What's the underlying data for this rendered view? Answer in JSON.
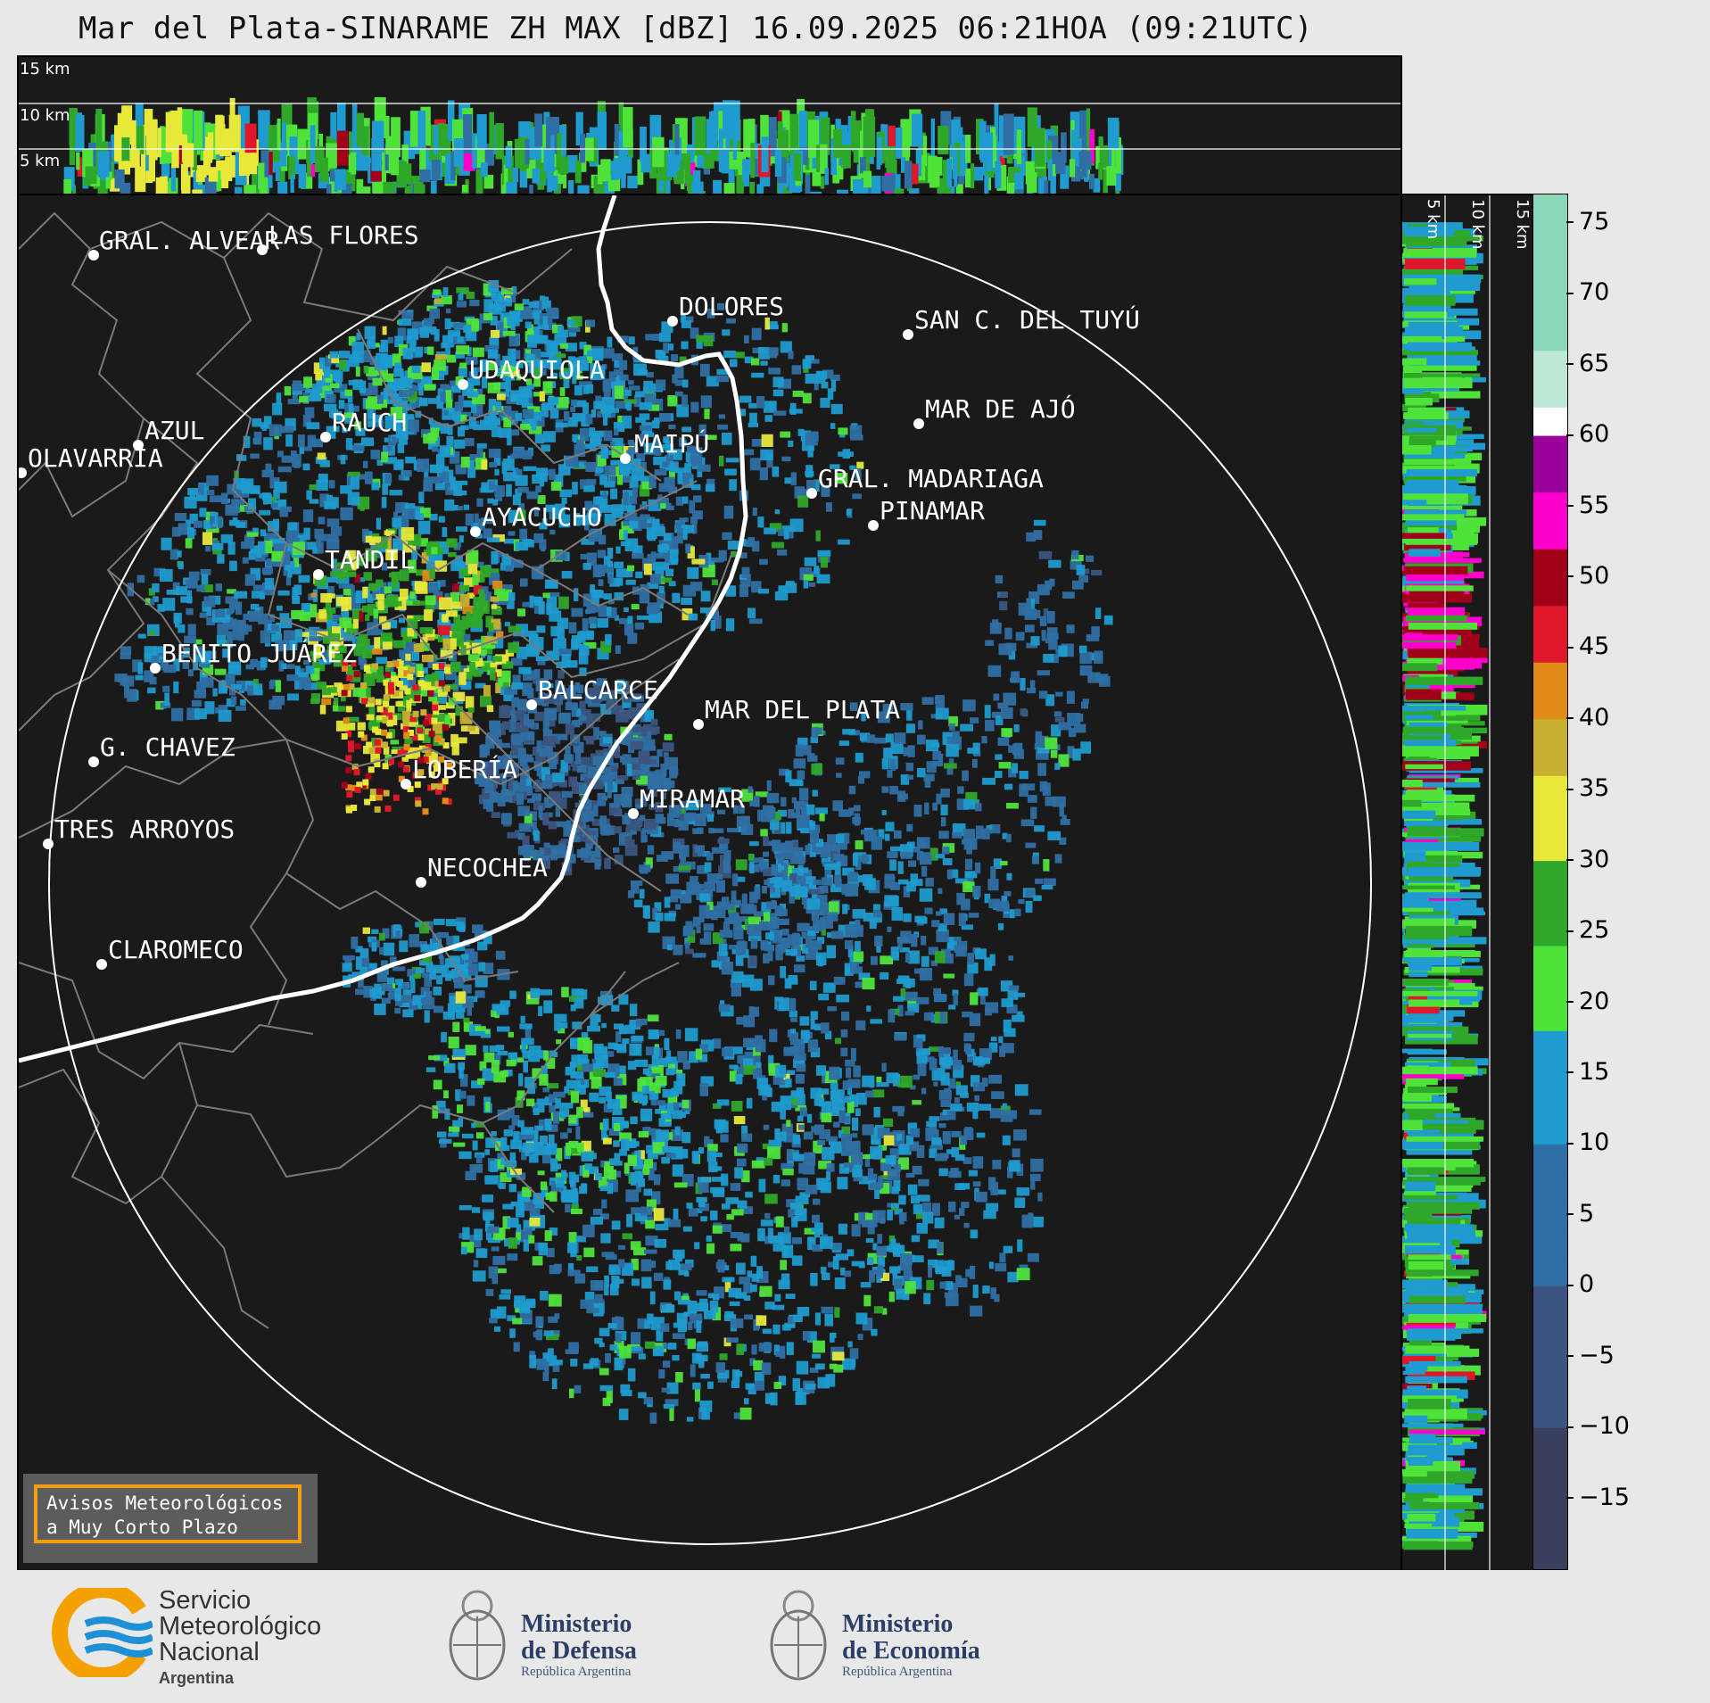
{
  "title": "Mar del Plata-SINARAME ZH MAX [dBZ] 16.09.2025 06:21HOA (09:21UTC)",
  "top_section": {
    "altitudes": [
      "15 km",
      "10 km",
      "5 km"
    ]
  },
  "right_section": {
    "altitudes": [
      "5 km",
      "10 km",
      "15 km"
    ]
  },
  "colorbar": {
    "ticks": [
      "75",
      "70",
      "65",
      "60",
      "55",
      "50",
      "45",
      "40",
      "35",
      "30",
      "25",
      "20",
      "15",
      "10",
      "5",
      "0",
      "−5",
      "−10",
      "−15"
    ],
    "stops": [
      {
        "from": -20,
        "color": "#3a3f5e"
      },
      {
        "from": -10,
        "color": "#3b5580"
      },
      {
        "from": 0,
        "color": "#2f6fa3"
      },
      {
        "from": 10,
        "color": "#1f9bcf"
      },
      {
        "from": 18,
        "color": "#4fe33a"
      },
      {
        "from": 24,
        "color": "#2fa82a"
      },
      {
        "from": 30,
        "color": "#e8e83a"
      },
      {
        "from": 36,
        "color": "#c8b030"
      },
      {
        "from": 40,
        "color": "#e08a1a"
      },
      {
        "from": 43,
        "color": "#e0162a"
      },
      {
        "from": 48,
        "color": "#a00018"
      },
      {
        "from": 51,
        "color": "#ff00cc"
      },
      {
        "from": 56,
        "color": "#9a009a"
      },
      {
        "from": 59,
        "color": "#ffffff"
      },
      {
        "from": 61,
        "color": "#bde8d4"
      },
      {
        "from": 66,
        "color": "#8ad8b8"
      }
    ]
  },
  "cities": [
    {
      "name": "GRAL. ALVEAR"
    },
    {
      "name": "LAS FLORES"
    },
    {
      "name": "DOLORES"
    },
    {
      "name": "SAN C. DEL TUYÚ"
    },
    {
      "name": "UDAQUIOLA"
    },
    {
      "name": "MAR DE AJÓ"
    },
    {
      "name": "AZUL"
    },
    {
      "name": "RAUCH"
    },
    {
      "name": "MAIPÚ"
    },
    {
      "name": "OLAVARRÍA"
    },
    {
      "name": "GRAL. MADARIAGA"
    },
    {
      "name": "PINAMAR"
    },
    {
      "name": "AYACUCHO"
    },
    {
      "name": "TANDIL"
    },
    {
      "name": "BENITO JUÁREZ"
    },
    {
      "name": "BALCARCE"
    },
    {
      "name": "MAR DEL PLATA"
    },
    {
      "name": "G. CHAVEZ"
    },
    {
      "name": "LOBERÍA"
    },
    {
      "name": "MIRAMAR"
    },
    {
      "name": "TRES ARROYOS"
    },
    {
      "name": "NECOCHEA"
    },
    {
      "name": "CLAROMECO"
    }
  ],
  "avisos": {
    "line1": "Avisos Meteorológicos",
    "line2": "a Muy Corto Plazo"
  },
  "footer": {
    "smn": {
      "line1": "Servicio",
      "line2": "Meteorológico",
      "line3": "Nacional",
      "line4": "Argentina"
    },
    "defensa": {
      "line1": "Ministerio",
      "line2": "de Defensa",
      "line3": "República Argentina"
    },
    "economia": {
      "line1": "Ministerio",
      "line2": "de Economía",
      "line3": "República Argentina"
    }
  }
}
